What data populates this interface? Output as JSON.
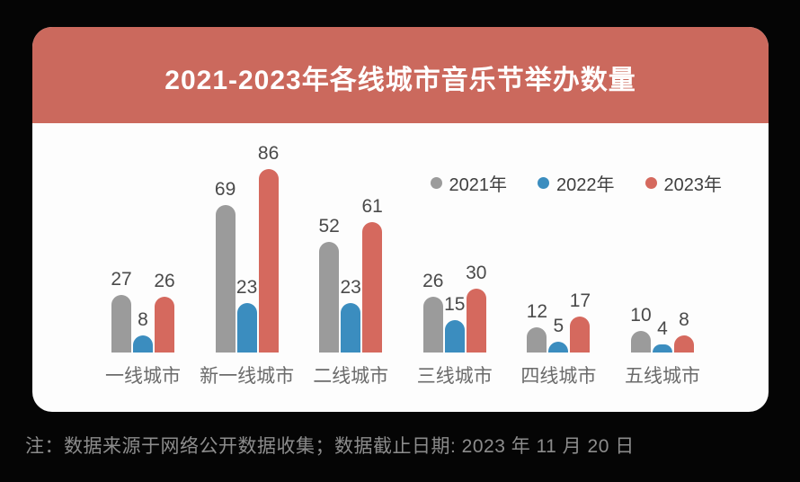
{
  "colors": {
    "page-bg": "#050505",
    "card-bg": "#fdfdfd",
    "header-bg": "#cb695d",
    "title-color": "#ffffff",
    "value-label": "#4a4a4a",
    "category-label": "#6b6b6b",
    "legend-label": "#3f3f3f",
    "footnote-color": "#8c8c8c"
  },
  "footnote": {
    "text": "注：数据来源于网络公开数据收集；数据截止日期: 2023 年 11 月 20 日"
  },
  "chart_data": {
    "type": "bar",
    "title": "2021-2023年各线城市音乐节举办数量",
    "categories": [
      "一线城市",
      "新一线城市",
      "二线城市",
      "三线城市",
      "四线城市",
      "五线城市"
    ],
    "series": [
      {
        "name": "2021年",
        "color": "#9b9b9b",
        "values": [
          27,
          69,
          52,
          26,
          12,
          10
        ]
      },
      {
        "name": "2022年",
        "color": "#3b8dbf",
        "values": [
          8,
          23,
          23,
          15,
          5,
          4
        ]
      },
      {
        "name": "2023年",
        "color": "#d5695e",
        "values": [
          26,
          86,
          61,
          30,
          17,
          8
        ]
      }
    ],
    "xlabel": "",
    "ylabel": "",
    "ylim": [
      0,
      86
    ],
    "grid": false,
    "legend_position": "top-right",
    "value_labels": true,
    "bar_cap": "rounded-top"
  }
}
